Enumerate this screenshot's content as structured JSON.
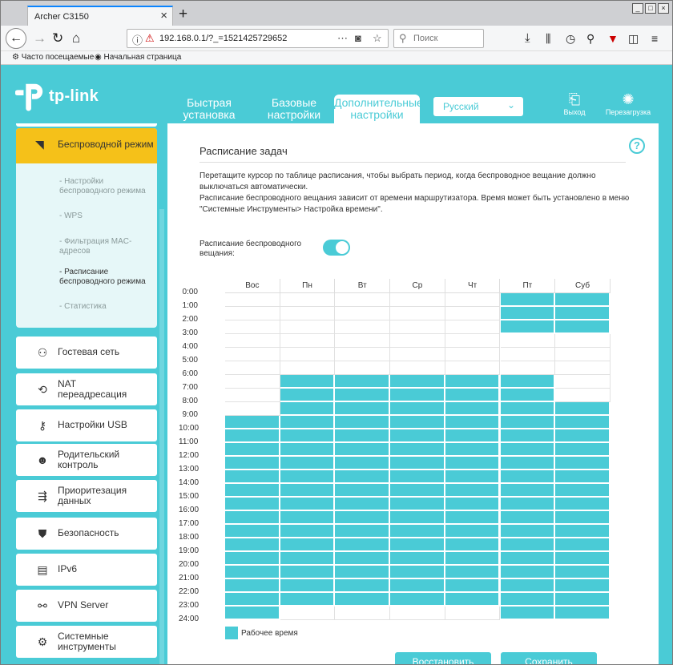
{
  "browser": {
    "tab_title": "Archer C3150",
    "url": "192.168.0.1/?_=1521425729652",
    "search_placeholder": "Поиск",
    "bookmarks": [
      "Часто посещаемые",
      "Начальная страница"
    ]
  },
  "header": {
    "brand": "tp-link",
    "nav": [
      {
        "label": "Быстрая установка"
      },
      {
        "label": "Базовые настройки"
      },
      {
        "label": "Дополнительные настройки",
        "active": true
      }
    ],
    "language": "Русский",
    "logout": "Выход",
    "reboot": "Перезагрузка"
  },
  "sidebar": {
    "wireless": {
      "title": "Беспроводной режим",
      "items": [
        "Настройки беспроводного режима",
        "WPS",
        "Фильтрация MAC-адресов",
        "Расписание беспроводного режима",
        "Статистика"
      ],
      "current": 3
    },
    "items": [
      {
        "label": "Гостевая сеть",
        "icon": "guest-icon"
      },
      {
        "label": "NAT переадресация",
        "icon": "nat-icon"
      },
      {
        "label": "Настройки USB",
        "icon": "usb-icon"
      },
      {
        "label": "Родительский контроль",
        "icon": "parental-icon"
      },
      {
        "label": "Приоритезация данных",
        "icon": "qos-icon"
      },
      {
        "label": "Безопасность",
        "icon": "shield-icon"
      },
      {
        "label": "IPv6",
        "icon": "ipv6-icon"
      },
      {
        "label": "VPN Server",
        "icon": "vpn-icon"
      },
      {
        "label": "Системные инструменты",
        "icon": "tools-icon"
      }
    ]
  },
  "main": {
    "title": "Расписание задач",
    "desc1": "Перетащите курсор по таблице расписания, чтобы выбрать период, когда беспроводное вещание должно выключаться автоматически.",
    "desc2": "Расписание беспроводного вещания зависит от времени маршрутизатора. Время может быть установлено в меню \"Системные Инструменты> Настройка времени\".",
    "toggle_label": "Расписание беспроводного вещания:",
    "toggle_on": true,
    "days": [
      "Вос",
      "Пн",
      "Вт",
      "Ср",
      "Чт",
      "Пт",
      "Суб"
    ],
    "hours": [
      "0:00",
      "1:00",
      "2:00",
      "3:00",
      "4:00",
      "5:00",
      "6:00",
      "7:00",
      "8:00",
      "9:00",
      "10:00",
      "11:00",
      "12:00",
      "13:00",
      "14:00",
      "15:00",
      "16:00",
      "17:00",
      "18:00",
      "19:00",
      "20:00",
      "21:00",
      "22:00",
      "23:00",
      "24:00"
    ],
    "schedule": [
      [
        9,
        10,
        11,
        12,
        13,
        14,
        15,
        16,
        17,
        18,
        19,
        20,
        21,
        22,
        23
      ],
      [
        6,
        7,
        8,
        9,
        10,
        11,
        12,
        13,
        14,
        15,
        16,
        17,
        18,
        19,
        20,
        21,
        22
      ],
      [
        6,
        7,
        8,
        9,
        10,
        11,
        12,
        13,
        14,
        15,
        16,
        17,
        18,
        19,
        20,
        21,
        22
      ],
      [
        6,
        7,
        8,
        9,
        10,
        11,
        12,
        13,
        14,
        15,
        16,
        17,
        18,
        19,
        20,
        21,
        22
      ],
      [
        6,
        7,
        8,
        9,
        10,
        11,
        12,
        13,
        14,
        15,
        16,
        17,
        18,
        19,
        20,
        21,
        22
      ],
      [
        0,
        1,
        2,
        6,
        7,
        8,
        9,
        10,
        11,
        12,
        13,
        14,
        15,
        16,
        17,
        18,
        19,
        20,
        21,
        22,
        23
      ],
      [
        0,
        1,
        2,
        8,
        9,
        10,
        11,
        12,
        13,
        14,
        15,
        16,
        17,
        18,
        19,
        20,
        21,
        22,
        23
      ]
    ],
    "legend": "Рабочее время",
    "restore": "Восстановить",
    "save": "Сохранить"
  }
}
